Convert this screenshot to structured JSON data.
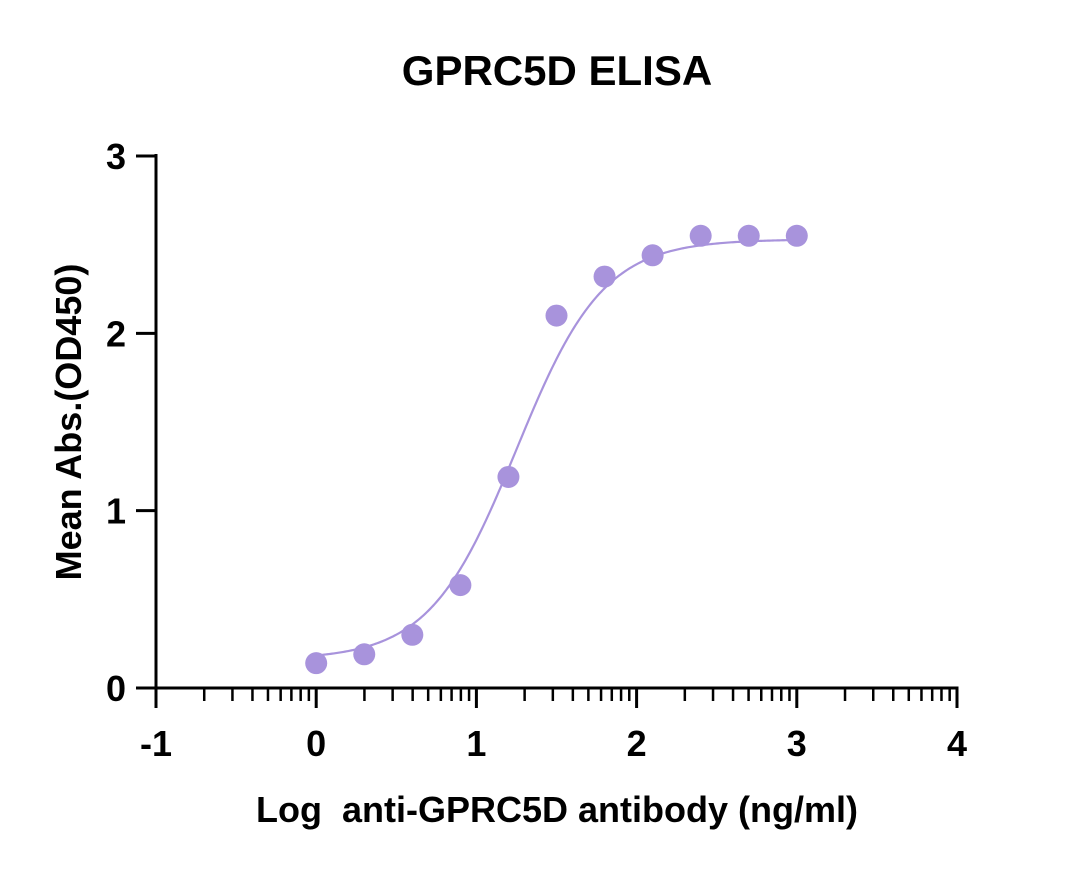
{
  "chart_data": {
    "type": "scatter",
    "title": "GPRC5D ELISA",
    "xlabel": "Log  anti-GPRC5D antibody (ng/ml)",
    "ylabel": "Mean Abs.(OD450)",
    "xlim": [
      -1,
      4
    ],
    "ylim": [
      0,
      3
    ],
    "x_ticks": [
      "-1",
      "0",
      "1",
      "2",
      "3",
      "4"
    ],
    "y_ticks": [
      "0",
      "1",
      "2",
      "3"
    ],
    "x_axis_scale": "log",
    "grid": false,
    "legend": "none",
    "series": [
      {
        "color": "#a893dc",
        "points": [
          {
            "x": 0.0,
            "y": 0.14
          },
          {
            "x": 0.3,
            "y": 0.19
          },
          {
            "x": 0.6,
            "y": 0.3
          },
          {
            "x": 0.9,
            "y": 0.58
          },
          {
            "x": 1.2,
            "y": 1.19
          },
          {
            "x": 1.5,
            "y": 2.1
          },
          {
            "x": 1.8,
            "y": 2.32
          },
          {
            "x": 2.1,
            "y": 2.44
          },
          {
            "x": 2.4,
            "y": 2.55
          },
          {
            "x": 2.7,
            "y": 2.55
          },
          {
            "x": 3.0,
            "y": 2.55
          }
        ],
        "fit": {
          "model": "four-parameter logistic",
          "bottom": 0.16,
          "top": 2.53,
          "logEC50": 1.25,
          "hill_slope": 1.6,
          "x_range": [
            0,
            3
          ]
        }
      }
    ]
  }
}
